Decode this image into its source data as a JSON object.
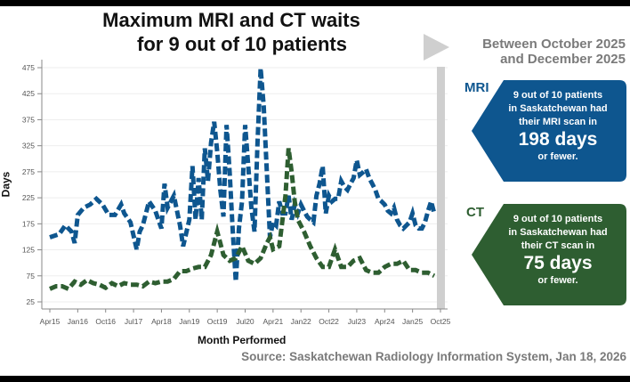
{
  "title": {
    "line1": "Maximum MRI and CT waits",
    "line2": "for 9 out of 10 patients"
  },
  "period": {
    "line1": "Between October 2025",
    "line2": "and December 2025"
  },
  "source": "Source: Saskatchewan Radiology Information System, Jan 18, 2026",
  "callouts": {
    "mri": {
      "label": "MRI",
      "line1": "9 out of 10 patients",
      "line2": "in Saskatchewan had",
      "line3": "their MRI scan in",
      "big": "198 days",
      "line4": "or fewer.",
      "color": "#0e568f"
    },
    "ct": {
      "label": "CT",
      "line1": "9 out of 10 patients",
      "line2": "in Saskatchewan had",
      "line3": "their CT scan in",
      "big": "75 days",
      "line4": "or fewer.",
      "color": "#2e5e31"
    }
  },
  "chart_data": {
    "type": "line",
    "title": "Maximum MRI and CT waits for 9 out of 10 patients",
    "xlabel": "Month Performed",
    "ylabel": "Days",
    "ylim": [
      25,
      475
    ],
    "yticks": [
      "25",
      "75",
      "125",
      "175",
      "225",
      "275",
      "325",
      "375",
      "425",
      "475"
    ],
    "xticks": [
      "Apr15",
      "Jan16",
      "Oct16",
      "Jul17",
      "Apr18",
      "Jan19",
      "Oct19",
      "Jul20",
      "Apr21",
      "Jan22",
      "Oct22",
      "Jul23",
      "Apr24",
      "Jan25",
      "Oct25"
    ],
    "xrange": [
      "2015-04",
      "2025-10"
    ],
    "grid": "horizontal",
    "highlight_period": [
      "2025-10",
      "2025-12"
    ],
    "series": [
      {
        "name": "MRI",
        "color": "#0e568f",
        "style": "dashed",
        "points": [
          [
            "2015-04",
            149
          ],
          [
            "2015-07",
            155
          ],
          [
            "2015-09",
            172
          ],
          [
            "2015-11",
            160
          ],
          [
            "2015-12",
            138
          ],
          [
            "2016-01",
            192
          ],
          [
            "2016-03",
            206
          ],
          [
            "2016-05",
            212
          ],
          [
            "2016-07",
            223
          ],
          [
            "2016-09",
            212
          ],
          [
            "2016-11",
            192
          ],
          [
            "2017-01",
            192
          ],
          [
            "2017-03",
            212
          ],
          [
            "2017-04",
            195
          ],
          [
            "2017-06",
            178
          ],
          [
            "2017-08",
            126
          ],
          [
            "2017-09",
            160
          ],
          [
            "2017-10",
            172
          ],
          [
            "2017-12",
            218
          ],
          [
            "2018-02",
            200
          ],
          [
            "2018-04",
            166
          ],
          [
            "2018-05",
            252
          ],
          [
            "2018-06",
            206
          ],
          [
            "2018-08",
            229
          ],
          [
            "2018-10",
            172
          ],
          [
            "2018-11",
            132
          ],
          [
            "2019-01",
            183
          ],
          [
            "2019-02",
            286
          ],
          [
            "2019-03",
            183
          ],
          [
            "2019-04",
            263
          ],
          [
            "2019-05",
            183
          ],
          [
            "2019-06",
            320
          ],
          [
            "2019-07",
            257
          ],
          [
            "2019-08",
            331
          ],
          [
            "2019-09",
            371
          ],
          [
            "2019-10",
            314
          ],
          [
            "2019-11",
            240
          ],
          [
            "2019-12",
            189
          ],
          [
            "2020-01",
            365
          ],
          [
            "2020-02",
            274
          ],
          [
            "2020-03",
            160
          ],
          [
            "2020-04",
            64
          ],
          [
            "2020-05",
            166
          ],
          [
            "2020-06",
            218
          ],
          [
            "2020-07",
            365
          ],
          [
            "2020-08",
            286
          ],
          [
            "2020-09",
            206
          ],
          [
            "2020-10",
            160
          ],
          [
            "2020-11",
            331
          ],
          [
            "2020-12",
            474
          ],
          [
            "2021-01",
            400
          ],
          [
            "2021-02",
            274
          ],
          [
            "2021-03",
            149
          ],
          [
            "2021-04",
            178
          ],
          [
            "2021-05",
            172
          ],
          [
            "2021-06",
            218
          ],
          [
            "2021-07",
            195
          ],
          [
            "2021-08",
            195
          ],
          [
            "2021-09",
            229
          ],
          [
            "2021-10",
            183
          ],
          [
            "2021-11",
            212
          ],
          [
            "2021-12",
            195
          ],
          [
            "2022-01",
            212
          ],
          [
            "2022-02",
            200
          ],
          [
            "2022-03",
            189
          ],
          [
            "2022-04",
            183
          ],
          [
            "2022-05",
            178
          ],
          [
            "2022-06",
            229
          ],
          [
            "2022-07",
            252
          ],
          [
            "2022-08",
            286
          ],
          [
            "2022-09",
            195
          ],
          [
            "2022-10",
            229
          ],
          [
            "2022-11",
            218
          ],
          [
            "2022-12",
            223
          ],
          [
            "2023-01",
            223
          ],
          [
            "2023-02",
            257
          ],
          [
            "2023-03",
            246
          ],
          [
            "2023-04",
            240
          ],
          [
            "2023-05",
            252
          ],
          [
            "2023-06",
            263
          ],
          [
            "2023-07",
            297
          ],
          [
            "2023-08",
            269
          ],
          [
            "2023-09",
            274
          ],
          [
            "2023-10",
            280
          ],
          [
            "2023-11",
            263
          ],
          [
            "2023-12",
            252
          ],
          [
            "2024-01",
            240
          ],
          [
            "2024-02",
            223
          ],
          [
            "2024-03",
            218
          ],
          [
            "2024-04",
            212
          ],
          [
            "2024-05",
            200
          ],
          [
            "2024-06",
            195
          ],
          [
            "2024-07",
            206
          ],
          [
            "2024-08",
            183
          ],
          [
            "2024-09",
            172
          ],
          [
            "2024-10",
            166
          ],
          [
            "2024-11",
            172
          ],
          [
            "2024-12",
            178
          ],
          [
            "2025-01",
            195
          ],
          [
            "2025-02",
            172
          ],
          [
            "2025-03",
            166
          ],
          [
            "2025-04",
            166
          ],
          [
            "2025-05",
            178
          ],
          [
            "2025-06",
            200
          ],
          [
            "2025-07",
            218
          ],
          [
            "2025-08",
            195
          ]
        ]
      },
      {
        "name": "CT",
        "color": "#2e5e31",
        "style": "dashed",
        "points": [
          [
            "2015-04",
            50
          ],
          [
            "2015-06",
            55
          ],
          [
            "2015-08",
            55
          ],
          [
            "2015-10",
            50
          ],
          [
            "2015-12",
            64
          ],
          [
            "2016-02",
            58
          ],
          [
            "2016-04",
            67
          ],
          [
            "2016-06",
            61
          ],
          [
            "2016-08",
            58
          ],
          [
            "2016-10",
            52
          ],
          [
            "2016-12",
            61
          ],
          [
            "2017-02",
            55
          ],
          [
            "2017-04",
            61
          ],
          [
            "2017-06",
            58
          ],
          [
            "2017-08",
            58
          ],
          [
            "2017-10",
            55
          ],
          [
            "2017-12",
            64
          ],
          [
            "2018-02",
            61
          ],
          [
            "2018-04",
            64
          ],
          [
            "2018-06",
            64
          ],
          [
            "2018-08",
            69
          ],
          [
            "2018-10",
            84
          ],
          [
            "2018-12",
            84
          ],
          [
            "2019-02",
            89
          ],
          [
            "2019-04",
            92
          ],
          [
            "2019-06",
            92
          ],
          [
            "2019-08",
            115
          ],
          [
            "2019-10",
            160
          ],
          [
            "2019-11",
            138
          ],
          [
            "2019-12",
            115
          ],
          [
            "2020-02",
            104
          ],
          [
            "2020-04",
            109
          ],
          [
            "2020-06",
            132
          ],
          [
            "2020-08",
            104
          ],
          [
            "2020-10",
            98
          ],
          [
            "2020-12",
            109
          ],
          [
            "2021-02",
            138
          ],
          [
            "2021-03",
            149
          ],
          [
            "2021-04",
            126
          ],
          [
            "2021-06",
            132
          ],
          [
            "2021-08",
            229
          ],
          [
            "2021-09",
            320
          ],
          [
            "2021-10",
            274
          ],
          [
            "2021-11",
            218
          ],
          [
            "2021-12",
            183
          ],
          [
            "2022-02",
            160
          ],
          [
            "2022-04",
            132
          ],
          [
            "2022-06",
            109
          ],
          [
            "2022-08",
            92
          ],
          [
            "2022-10",
            92
          ],
          [
            "2022-12",
            126
          ],
          [
            "2023-02",
            92
          ],
          [
            "2023-04",
            92
          ],
          [
            "2023-06",
            104
          ],
          [
            "2023-08",
            109
          ],
          [
            "2023-10",
            86
          ],
          [
            "2023-12",
            81
          ],
          [
            "2024-02",
            81
          ],
          [
            "2024-04",
            92
          ],
          [
            "2024-06",
            98
          ],
          [
            "2024-08",
            98
          ],
          [
            "2024-10",
            104
          ],
          [
            "2024-12",
            86
          ],
          [
            "2025-02",
            86
          ],
          [
            "2025-04",
            81
          ],
          [
            "2025-06",
            81
          ],
          [
            "2025-08",
            75
          ]
        ]
      }
    ]
  }
}
